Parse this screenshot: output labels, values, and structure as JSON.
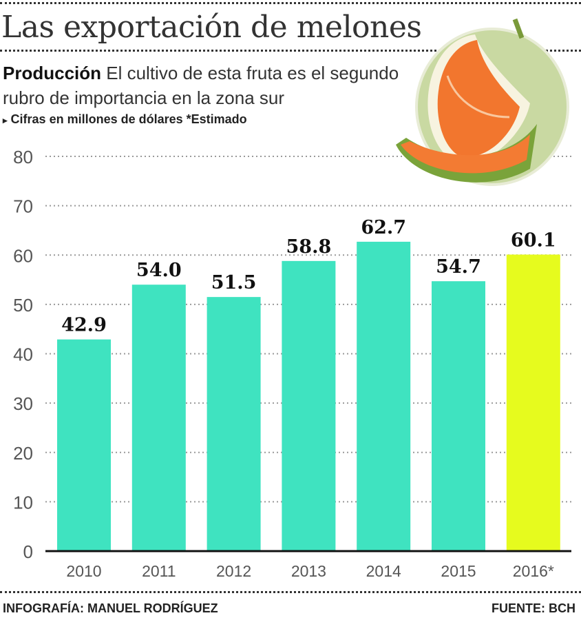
{
  "header": {
    "title": "Las exportación de melones",
    "subtitle_bold": "Producción",
    "subtitle": "El cultivo de esta fruta es el segundo rubro de importancia en la zona sur",
    "note_marker": "▸",
    "note": "Cifras en millones de dólares *Estimado"
  },
  "illustration": "melon-icon",
  "chart_data": {
    "type": "bar",
    "categories": [
      "2010",
      "2011",
      "2012",
      "2013",
      "2014",
      "2015",
      "2016*"
    ],
    "values": [
      42.9,
      54.0,
      51.5,
      58.8,
      62.7,
      54.7,
      60.1
    ],
    "data_labels": [
      "42.9",
      "54.0",
      "51.5",
      "58.8",
      "62.7",
      "54.7",
      "60.1"
    ],
    "ylim": [
      0,
      80
    ],
    "yticks": [
      0,
      10,
      20,
      30,
      40,
      50,
      60,
      70,
      80
    ],
    "grid": true,
    "colors": {
      "actual": "#3fe3c0",
      "estimated": "#e6fb1e"
    },
    "estimated_categories": [
      "2016*"
    ]
  },
  "footer": {
    "credit": "INFOGRAFÍA: MANUEL RODRÍGUEZ",
    "source": "FUENTE: BCH"
  }
}
